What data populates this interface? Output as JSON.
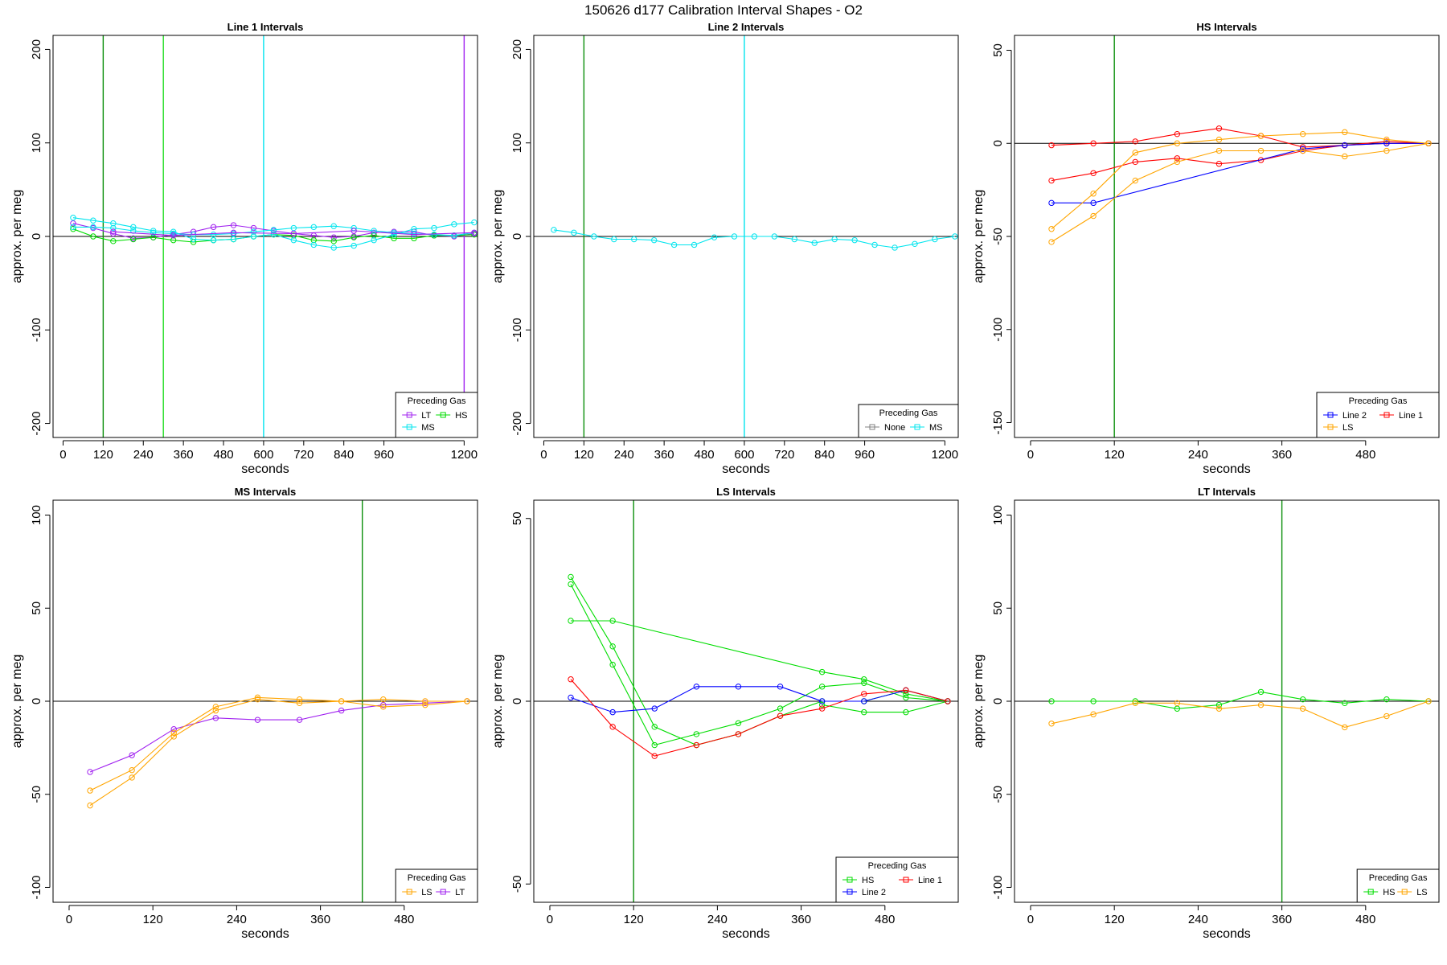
{
  "title": "150626   d177   Calibration Interval Shapes - O2",
  "colors": {
    "LT": "#a020f0",
    "HS": "#00dd00",
    "MS": "#00e5ee",
    "LS": "#ffa500",
    "Line 1": "#ff0000",
    "Line 2": "#0000ff",
    "None": "#808080",
    "vline_dark": "#006400",
    "vline_green": "#00cc00"
  },
  "chart_data": [
    {
      "type": "line",
      "title": "Line 1 Intervals",
      "xlabel": "seconds",
      "ylabel": "approx. per meg",
      "xlim": [
        -30,
        1240
      ],
      "ylim": [
        -215,
        215
      ],
      "xticks": [
        0,
        120,
        240,
        360,
        480,
        600,
        720,
        840,
        960,
        1200
      ],
      "yticks": [
        -200,
        -100,
        0,
        100,
        200
      ],
      "hline": 0,
      "vlines": [
        {
          "x": 120,
          "color": "#0b8f0b"
        },
        {
          "x": 300,
          "color": "#22dd22"
        },
        {
          "x": 600,
          "color": "#00e5ee"
        },
        {
          "x": 1200,
          "color": "#a020f0"
        }
      ],
      "legend": {
        "title": "Preceding Gas",
        "position": "bottom-right",
        "entries": [
          [
            "LT",
            "HS"
          ],
          [
            "MS"
          ]
        ]
      },
      "series": [
        {
          "name": "LT",
          "color": "#a020f0",
          "x": [
            30,
            90,
            150,
            210,
            270,
            330,
            390,
            450,
            510,
            570,
            630,
            690,
            750,
            810,
            870,
            930,
            990,
            1050,
            1110,
            1170,
            1230
          ],
          "y": [
            14,
            9,
            3,
            -2,
            -1,
            2,
            5,
            10,
            12,
            9,
            6,
            3,
            1,
            -1,
            0,
            4,
            5,
            5,
            1,
            0,
            3
          ]
        },
        {
          "name": "HS",
          "color": "#00dd00",
          "x": [
            30,
            90,
            150,
            210,
            270,
            330,
            390,
            450,
            510,
            570,
            630,
            690,
            750,
            810,
            870,
            930,
            990,
            1050,
            1110,
            1170,
            1230
          ],
          "y": [
            8,
            0,
            -5,
            -3,
            -1,
            -4,
            -6,
            -4,
            -3,
            0,
            2,
            1,
            -4,
            -5,
            -1,
            1,
            -2,
            -2,
            1,
            1,
            2
          ]
        },
        {
          "name": "MS",
          "color": "#00e5ee",
          "x": [
            30,
            90,
            150,
            210,
            270,
            330,
            390,
            450,
            510,
            570,
            630,
            690,
            750,
            810,
            870,
            930,
            990,
            1050,
            1110,
            1170,
            1230
          ],
          "y": [
            20,
            17,
            14,
            10,
            6,
            5,
            -3,
            -4,
            -3,
            0,
            2,
            -4,
            -9,
            -12,
            -10,
            -4,
            2,
            8,
            9,
            13,
            15
          ]
        },
        {
          "name": "MS",
          "color": "#00e5ee",
          "x": [
            30,
            90,
            150,
            210,
            270,
            330,
            390,
            450,
            510,
            570,
            630,
            690,
            750,
            810,
            870,
            930,
            990,
            1050,
            1110,
            1170,
            1230
          ],
          "y": [
            10,
            10,
            9,
            6,
            4,
            3,
            2,
            2,
            3,
            5,
            7,
            9,
            10,
            11,
            9,
            6,
            4,
            3,
            2,
            1,
            4
          ]
        },
        {
          "name": "LT",
          "color": "#a020f0",
          "x": [
            150,
            330,
            510,
            690,
            870,
            1050,
            1230
          ],
          "y": [
            5,
            1,
            4,
            3,
            6,
            2,
            4
          ]
        }
      ]
    },
    {
      "type": "line",
      "title": "Line 2 Intervals",
      "xlabel": "seconds",
      "ylabel": "approx. per meg",
      "xlim": [
        -30,
        1240
      ],
      "ylim": [
        -215,
        215
      ],
      "xticks": [
        0,
        120,
        240,
        360,
        480,
        600,
        720,
        840,
        960,
        1200
      ],
      "yticks": [
        -200,
        -100,
        0,
        100,
        200
      ],
      "hline": 0,
      "vlines": [
        {
          "x": 120,
          "color": "#0b8f0b"
        },
        {
          "x": 600,
          "color": "#00e5ee"
        }
      ],
      "legend": {
        "title": "Preceding Gas",
        "position": "bottom-right",
        "entries": [
          [
            "None",
            "MS"
          ]
        ]
      },
      "series": [
        {
          "name": "MS",
          "color": "#00e5ee",
          "x": [
            30,
            90,
            150,
            210,
            270,
            330,
            390,
            450,
            510,
            570,
            630,
            690,
            750,
            810,
            870,
            930,
            990,
            1050,
            1110,
            1170,
            1230
          ],
          "y": [
            7,
            4,
            0,
            -3,
            -3,
            -4,
            -9,
            -9,
            -1,
            0,
            0,
            0,
            -3,
            -7,
            -3,
            -4,
            -9,
            -12,
            -8,
            -3,
            0
          ]
        }
      ]
    },
    {
      "type": "line",
      "title": "HS Intervals",
      "xlabel": "seconds",
      "ylabel": "approx. per meg",
      "xlim": [
        -23,
        585
      ],
      "ylim": [
        -158,
        58
      ],
      "xticks": [
        0,
        120,
        240,
        360,
        480
      ],
      "yticks": [
        -150,
        -100,
        -50,
        0,
        50
      ],
      "hline": 0,
      "vlines": [
        {
          "x": 120,
          "color": "#0b8f0b"
        }
      ],
      "legend": {
        "title": "Preceding Gas",
        "position": "bottom-right",
        "entries": [
          [
            "Line 2",
            "Line 1"
          ],
          [
            "LS"
          ]
        ]
      },
      "series": [
        {
          "name": "Line 1",
          "color": "#ff0000",
          "x": [
            30,
            90,
            150,
            210,
            270,
            330,
            390,
            450,
            510,
            570
          ],
          "y": [
            -1,
            0,
            1,
            5,
            8,
            4,
            -2,
            -1,
            1,
            0
          ]
        },
        {
          "name": "Line 1",
          "color": "#ff0000",
          "x": [
            30,
            90,
            150,
            210,
            270,
            330,
            390,
            450,
            510,
            570
          ],
          "y": [
            -20,
            -16,
            -10,
            -8,
            -11,
            -9,
            -4,
            -1,
            0,
            0
          ]
        },
        {
          "name": "Line 2",
          "color": "#0000ff",
          "x": [
            30,
            90,
            390,
            450,
            510,
            570
          ],
          "y": [
            -32,
            -32,
            -3,
            -1,
            0,
            0
          ]
        },
        {
          "name": "LS",
          "color": "#ffa500",
          "x": [
            30,
            90,
            150,
            210,
            270,
            330,
            390,
            450,
            510,
            570
          ],
          "y": [
            -46,
            -27,
            -5,
            0,
            2,
            4,
            5,
            6,
            2,
            0
          ]
        },
        {
          "name": "LS",
          "color": "#ffa500",
          "x": [
            30,
            90,
            150,
            210,
            270,
            330,
            390,
            450,
            510,
            570
          ],
          "y": [
            -53,
            -39,
            -20,
            -10,
            -4,
            -4,
            -4,
            -7,
            -4,
            0
          ]
        }
      ]
    },
    {
      "type": "line",
      "title": "MS Intervals",
      "xlabel": "seconds",
      "ylabel": "approx. per meg",
      "xlim": [
        -23,
        585
      ],
      "ylim": [
        -108,
        108
      ],
      "xticks": [
        0,
        120,
        240,
        360,
        480
      ],
      "yticks": [
        -100,
        -50,
        0,
        50,
        100
      ],
      "hline": 0,
      "vlines": [
        {
          "x": 420,
          "color": "#0b8f0b"
        }
      ],
      "legend": {
        "title": "Preceding Gas",
        "position": "bottom-right",
        "entries": [
          [
            "LS",
            "LT"
          ]
        ]
      },
      "series": [
        {
          "name": "LT",
          "color": "#a020f0",
          "x": [
            30,
            90,
            150,
            210,
            270,
            330,
            390,
            450,
            510,
            570
          ],
          "y": [
            -38,
            -29,
            -15,
            -9,
            -10,
            -10,
            -5,
            -2,
            -1,
            0
          ]
        },
        {
          "name": "LS",
          "color": "#ffa500",
          "x": [
            30,
            90,
            150,
            210,
            270,
            330,
            390,
            450,
            510,
            570
          ],
          "y": [
            -48,
            -37,
            -17,
            -3,
            2,
            1,
            0,
            1,
            0,
            0
          ]
        },
        {
          "name": "LS",
          "color": "#ffa500",
          "x": [
            30,
            90,
            150,
            210,
            270,
            330,
            390,
            450,
            510,
            570
          ],
          "y": [
            -56,
            -41,
            -19,
            -5,
            1,
            -1,
            0,
            -3,
            -2,
            0
          ]
        }
      ]
    },
    {
      "type": "line",
      "title": "LS Intervals",
      "xlabel": "seconds",
      "ylabel": "approx. per meg",
      "xlim": [
        -23,
        585
      ],
      "ylim": [
        -55,
        55
      ],
      "xticks": [
        0,
        120,
        240,
        360,
        480
      ],
      "yticks": [
        -50,
        0,
        50
      ],
      "hline": 0,
      "vlines": [
        {
          "x": 120,
          "color": "#0b8f0b"
        }
      ],
      "legend": {
        "title": "Preceding Gas",
        "position": "bottom-right",
        "entries": [
          [
            "HS",
            "Line 1"
          ],
          [
            "Line 2"
          ]
        ]
      },
      "series": [
        {
          "name": "HS",
          "color": "#00dd00",
          "x": [
            30,
            90,
            390,
            450,
            510,
            570
          ],
          "y": [
            22,
            22,
            8,
            6,
            2,
            0
          ]
        },
        {
          "name": "HS",
          "color": "#00dd00",
          "x": [
            30,
            90,
            150,
            210,
            270,
            330,
            390,
            450,
            510,
            570
          ],
          "y": [
            34,
            15,
            -7,
            -12,
            -9,
            -4,
            0,
            0,
            3,
            0
          ]
        },
        {
          "name": "HS",
          "color": "#00dd00",
          "x": [
            30,
            90,
            150,
            210,
            270,
            330,
            390,
            450,
            510,
            570
          ],
          "y": [
            32,
            10,
            -12,
            -9,
            -6,
            -2,
            4,
            5,
            1,
            0
          ]
        },
        {
          "name": "HS",
          "color": "#00dd00",
          "x": [
            390,
            450,
            510,
            570
          ],
          "y": [
            -1,
            -3,
            -3,
            0
          ]
        },
        {
          "name": "Line 2",
          "color": "#0000ff",
          "x": [
            30,
            90,
            150,
            210,
            270,
            330,
            390,
            450,
            510,
            570
          ],
          "y": [
            1,
            -3,
            -2,
            4,
            4,
            4,
            0,
            0,
            3,
            0
          ]
        },
        {
          "name": "Line 1",
          "color": "#ff0000",
          "x": [
            30,
            90,
            150,
            210,
            270,
            330,
            390,
            450,
            510,
            570
          ],
          "y": [
            6,
            -7,
            -15,
            -12,
            -9,
            -4,
            -2,
            2,
            3,
            0
          ]
        }
      ]
    },
    {
      "type": "line",
      "title": "LT Intervals",
      "xlabel": "seconds",
      "ylabel": "approx. per meg",
      "xlim": [
        -23,
        585
      ],
      "ylim": [
        -108,
        108
      ],
      "xticks": [
        0,
        120,
        240,
        360,
        480
      ],
      "yticks": [
        -100,
        -50,
        0,
        50,
        100
      ],
      "hline": 0,
      "vlines": [
        {
          "x": 360,
          "color": "#0b8f0b"
        }
      ],
      "legend": {
        "title": "Preceding Gas",
        "position": "bottom-right",
        "entries": [
          [
            "HS",
            "LS"
          ]
        ]
      },
      "series": [
        {
          "name": "HS",
          "color": "#00dd00",
          "x": [
            30,
            90,
            150,
            210,
            270,
            330,
            390,
            450,
            510,
            570
          ],
          "y": [
            0,
            0,
            0,
            -4,
            -2,
            5,
            1,
            -1,
            1,
            0
          ]
        },
        {
          "name": "LS",
          "color": "#ffa500",
          "x": [
            30,
            90,
            150,
            210,
            270,
            330,
            390,
            450,
            510,
            570
          ],
          "y": [
            -12,
            -7,
            -1,
            -1,
            -4,
            -2,
            -4,
            -14,
            -8,
            0
          ]
        }
      ]
    }
  ]
}
